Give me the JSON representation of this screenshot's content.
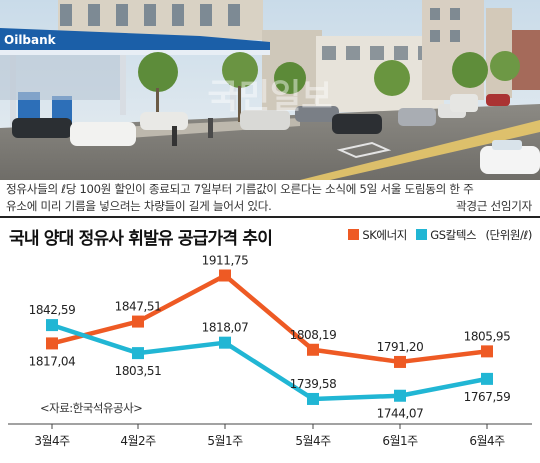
{
  "photo": {
    "sign_text": "Oilbank",
    "watermark": "국민일보"
  },
  "caption": {
    "line1": "정유사들의 ℓ당 100원 할인이 종료되고 7일부터 기름값이 오른다는 소식에 5일 서울 도림동의 한 주",
    "line2": "유소에 미리 기름을 넣으려는 차량들이 길게 늘어서 있다.",
    "credit": "곽경근 선임기자"
  },
  "chart_data": {
    "type": "line",
    "title": "국내 양대 정유사 휘발유 공급가격 추이",
    "categories": [
      "3월4주",
      "4월2주",
      "5월1주",
      "5월4주",
      "6월1주",
      "6월4주"
    ],
    "unit": "(단위원/ℓ)",
    "source": "<자료:한국석유공사>",
    "series": [
      {
        "name": "SK에너지",
        "color": "#ee5a24",
        "values": [
          1817.04,
          1847.51,
          1911.75,
          1808.19,
          1791.2,
          1805.95
        ],
        "labels": [
          "1817,04",
          "1847,51",
          "1911,75",
          "1808,19",
          "1791,20",
          "1805,95"
        ],
        "label_pos": [
          "below",
          "above",
          "above",
          "above",
          "above",
          "above"
        ]
      },
      {
        "name": "GS칼텍스",
        "color": "#21b6d4",
        "values": [
          1842.59,
          1803.51,
          1818.07,
          1739.58,
          1744.07,
          1767.59
        ],
        "labels": [
          "1842,59",
          "1803,51",
          "1818,07",
          "1739,58",
          "1744,07",
          "1767,59"
        ],
        "label_pos": [
          "above",
          "below",
          "above",
          "above",
          "below",
          "below"
        ]
      }
    ],
    "y_range": [
      1720,
      1925
    ],
    "grid": false,
    "legend": "top-right"
  }
}
